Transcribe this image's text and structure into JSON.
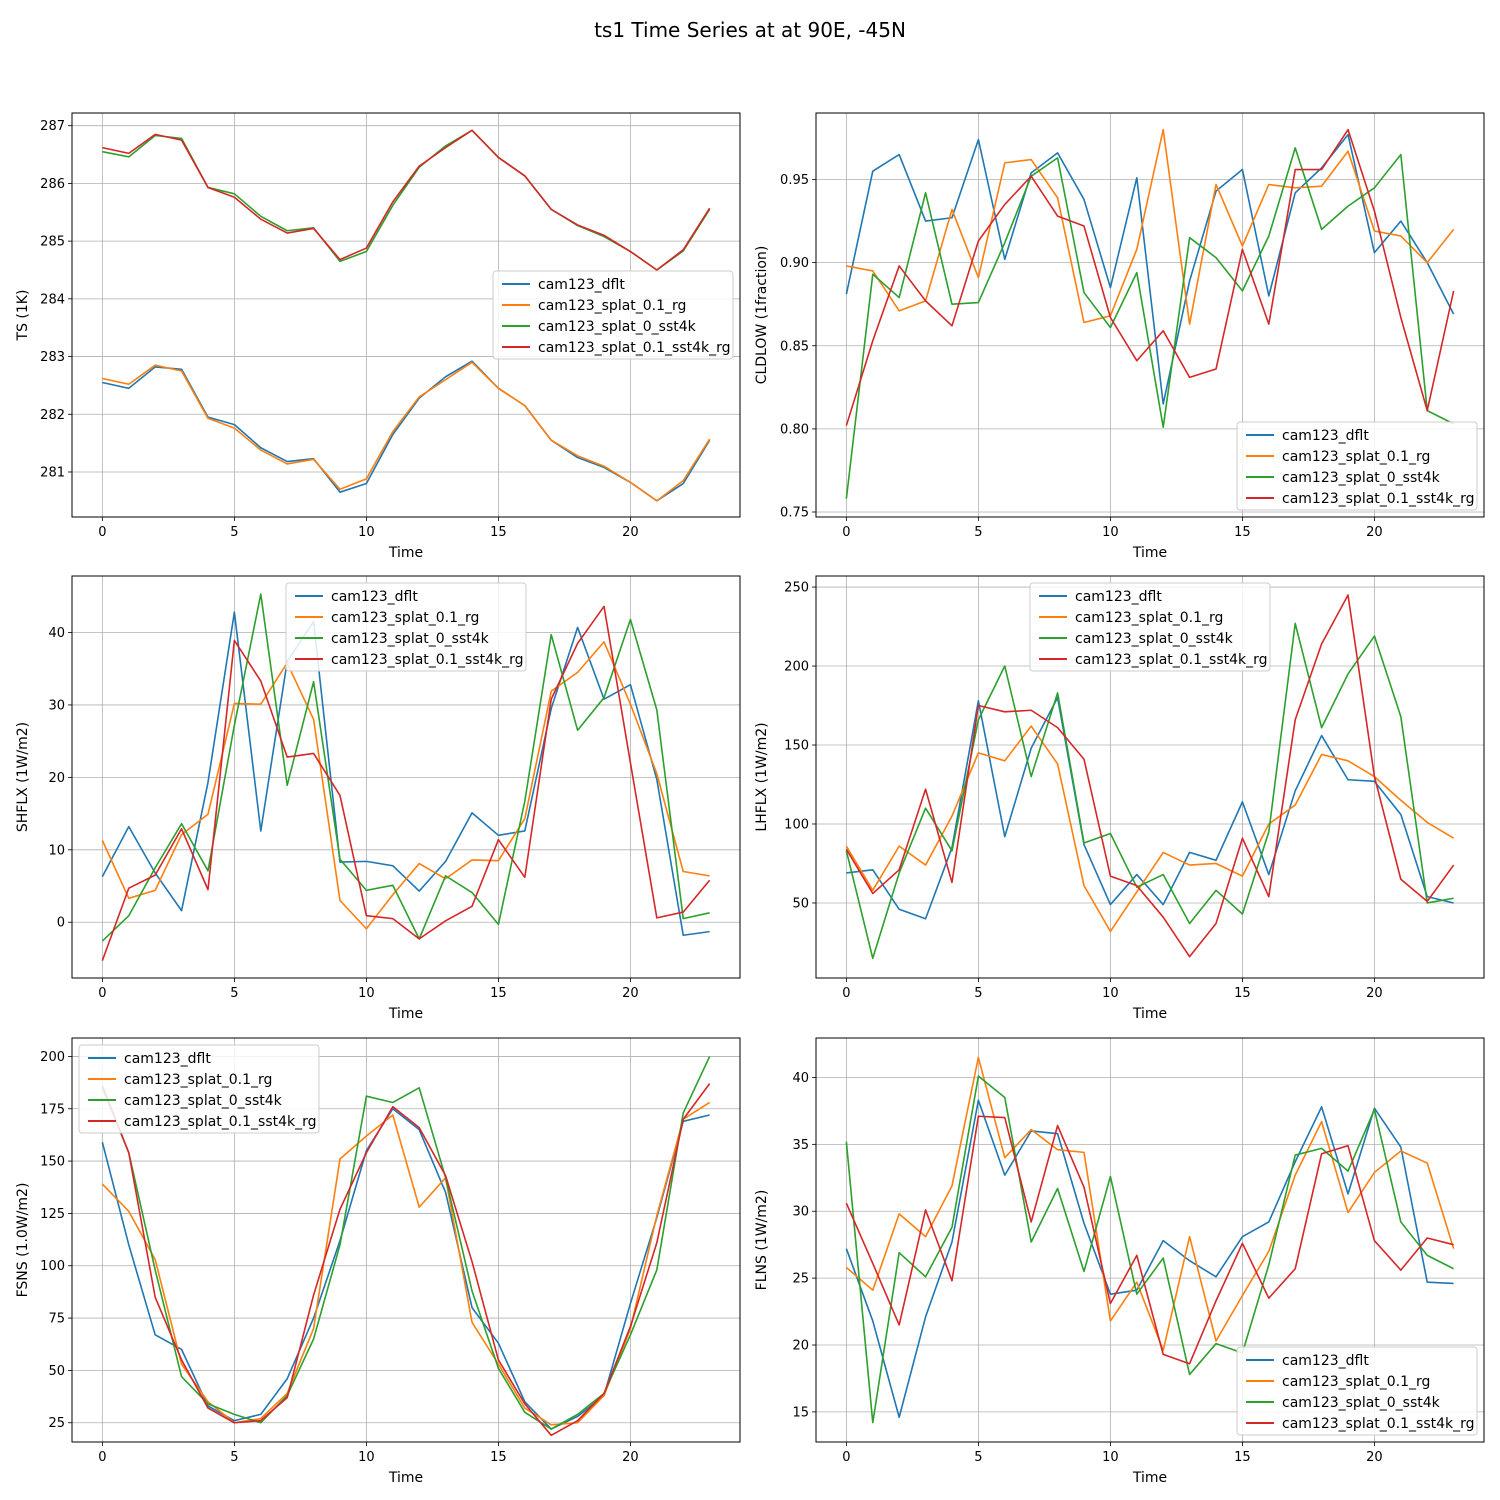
{
  "figure": {
    "title": "ts1 Time Series at at 90E, -45N"
  },
  "series_colors": {
    "cam123_dflt": "#1f77b4",
    "cam123_splat_0.1_rg": "#ff7f0e",
    "cam123_splat_0_sst4k": "#2ca02c",
    "cam123_splat_0.1_sst4k_rg": "#d62728"
  },
  "chart_data": [
    {
      "type": "line",
      "xlabel": "Time",
      "ylabel": "TS (1K)",
      "xlim": [
        -1.15,
        24.15
      ],
      "ylim": [
        280.22,
        287.22
      ],
      "xticks": [
        0,
        5,
        10,
        15,
        20
      ],
      "yticks": [
        281,
        282,
        283,
        284,
        285,
        286,
        287
      ],
      "ytick_decimals": 0,
      "grid": true,
      "legend": "center-right",
      "x": [
        0,
        1,
        2,
        3,
        4,
        5,
        6,
        7,
        8,
        9,
        10,
        11,
        12,
        13,
        14,
        15,
        16,
        17,
        18,
        19,
        20,
        21,
        22,
        23
      ],
      "series": [
        {
          "name": "cam123_dflt",
          "color": "#1f77b4",
          "values": [
            282.55,
            282.45,
            282.82,
            282.78,
            281.95,
            281.82,
            281.42,
            281.18,
            281.23,
            280.65,
            280.8,
            281.65,
            282.28,
            282.65,
            282.92,
            282.45,
            282.15,
            281.55,
            281.25,
            281.08,
            280.82,
            280.5,
            280.8,
            281.55
          ]
        },
        {
          "name": "cam123_splat_0.1_rg",
          "color": "#ff7f0e",
          "values": [
            282.62,
            282.52,
            282.85,
            282.75,
            281.93,
            281.76,
            281.38,
            281.14,
            281.22,
            280.7,
            280.88,
            281.7,
            282.3,
            282.6,
            282.9,
            282.45,
            282.15,
            281.55,
            281.28,
            281.1,
            280.82,
            280.5,
            280.85,
            281.57
          ]
        },
        {
          "name": "cam123_splat_0_sst4k",
          "color": "#2ca02c",
          "values": [
            286.55,
            286.46,
            286.83,
            286.78,
            285.93,
            285.82,
            285.43,
            285.18,
            285.23,
            284.65,
            284.82,
            285.62,
            286.28,
            286.65,
            286.92,
            286.45,
            286.13,
            285.55,
            285.27,
            285.08,
            284.82,
            284.5,
            284.83,
            285.55
          ]
        },
        {
          "name": "cam123_splat_0.1_sst4k_rg",
          "color": "#d62728",
          "values": [
            286.62,
            286.52,
            286.85,
            286.75,
            285.93,
            285.76,
            285.38,
            285.14,
            285.22,
            284.68,
            284.88,
            285.68,
            286.3,
            286.62,
            286.92,
            286.45,
            286.13,
            285.55,
            285.28,
            285.1,
            284.82,
            284.5,
            284.85,
            285.57
          ]
        }
      ]
    },
    {
      "type": "line",
      "xlabel": "Time",
      "ylabel": "CLDLOW (1fraction)",
      "xlim": [
        -1.15,
        24.15
      ],
      "ylim": [
        0.747,
        0.99
      ],
      "xticks": [
        0,
        5,
        10,
        15,
        20
      ],
      "yticks": [
        0.75,
        0.8,
        0.85,
        0.9,
        0.95
      ],
      "ytick_decimals": 2,
      "grid": true,
      "legend": "lower-right",
      "x": [
        0,
        1,
        2,
        3,
        4,
        5,
        6,
        7,
        8,
        9,
        10,
        11,
        12,
        13,
        14,
        15,
        16,
        17,
        18,
        19,
        20,
        21,
        22,
        23
      ],
      "series": [
        {
          "name": "cam123_dflt",
          "color": "#1f77b4",
          "values": [
            0.881,
            0.955,
            0.965,
            0.925,
            0.927,
            0.974,
            0.902,
            0.954,
            0.966,
            0.938,
            0.885,
            0.951,
            0.815,
            0.889,
            0.943,
            0.956,
            0.88,
            0.942,
            0.957,
            0.977,
            0.906,
            0.925,
            0.9,
            0.869
          ]
        },
        {
          "name": "cam123_splat_0.1_rg",
          "color": "#ff7f0e",
          "values": [
            0.898,
            0.895,
            0.871,
            0.877,
            0.932,
            0.891,
            0.96,
            0.962,
            0.939,
            0.864,
            0.868,
            0.908,
            0.98,
            0.863,
            0.947,
            0.91,
            0.947,
            0.945,
            0.946,
            0.967,
            0.919,
            0.916,
            0.9,
            0.92
          ]
        },
        {
          "name": "cam123_splat_0_sst4k",
          "color": "#2ca02c",
          "values": [
            0.758,
            0.893,
            0.879,
            0.942,
            0.875,
            0.876,
            0.912,
            0.952,
            0.963,
            0.882,
            0.861,
            0.894,
            0.801,
            0.915,
            0.903,
            0.883,
            0.916,
            0.969,
            0.92,
            0.934,
            0.945,
            0.965,
            0.811,
            0.803
          ]
        },
        {
          "name": "cam123_splat_0.1_sst4k_rg",
          "color": "#d62728",
          "values": [
            0.802,
            0.853,
            0.898,
            0.877,
            0.862,
            0.913,
            0.935,
            0.952,
            0.928,
            0.922,
            0.867,
            0.841,
            0.859,
            0.831,
            0.836,
            0.908,
            0.863,
            0.956,
            0.956,
            0.98,
            0.931,
            0.867,
            0.811,
            0.883
          ]
        }
      ]
    },
    {
      "type": "line",
      "xlabel": "Time",
      "ylabel": "SHFLX (1W/m2)",
      "xlim": [
        -1.15,
        24.15
      ],
      "ylim": [
        -7.7,
        47.8
      ],
      "xticks": [
        0,
        5,
        10,
        15,
        20
      ],
      "yticks": [
        0,
        10,
        20,
        30,
        40
      ],
      "ytick_decimals": 0,
      "grid": true,
      "legend": "upper-center",
      "x": [
        0,
        1,
        2,
        3,
        4,
        5,
        6,
        7,
        8,
        9,
        10,
        11,
        12,
        13,
        14,
        15,
        16,
        17,
        18,
        19,
        20,
        21,
        22,
        23
      ],
      "series": [
        {
          "name": "cam123_dflt",
          "color": "#1f77b4",
          "values": [
            6.3,
            13.2,
            6.8,
            1.6,
            19.3,
            42.8,
            12.6,
            36.0,
            41.5,
            8.3,
            8.4,
            7.8,
            4.3,
            8.4,
            15.1,
            12.0,
            12.6,
            29.5,
            40.7,
            30.8,
            32.8,
            19.7,
            -1.8,
            -1.3
          ]
        },
        {
          "name": "cam123_splat_0.1_rg",
          "color": "#ff7f0e",
          "values": [
            11.3,
            3.3,
            4.4,
            12.1,
            14.9,
            30.2,
            30.1,
            35.8,
            28.0,
            3.0,
            -0.9,
            3.8,
            8.1,
            6.0,
            8.6,
            8.5,
            14.3,
            31.9,
            34.5,
            38.7,
            30.1,
            20.5,
            7.0,
            6.4
          ]
        },
        {
          "name": "cam123_splat_0_sst4k",
          "color": "#2ca02c",
          "values": [
            -2.6,
            0.9,
            7.5,
            13.6,
            7.1,
            27.2,
            45.3,
            18.9,
            33.2,
            8.7,
            4.4,
            5.1,
            -2.3,
            6.4,
            4.1,
            -0.3,
            16.7,
            39.7,
            26.5,
            31.0,
            41.8,
            29.3,
            0.5,
            1.3
          ]
        },
        {
          "name": "cam123_splat_0.1_sst4k_rg",
          "color": "#d62728",
          "values": [
            -5.3,
            4.7,
            6.5,
            12.9,
            4.5,
            38.9,
            33.3,
            22.8,
            23.3,
            17.5,
            0.9,
            0.5,
            -2.3,
            0.2,
            2.2,
            11.4,
            6.2,
            30.8,
            38.5,
            43.6,
            22.0,
            0.6,
            1.4,
            5.8
          ]
        }
      ]
    },
    {
      "type": "line",
      "xlabel": "Time",
      "ylabel": "LHFLX (1W/m2)",
      "xlim": [
        -1.15,
        24.15
      ],
      "ylim": [
        2.5,
        257
      ],
      "xticks": [
        0,
        5,
        10,
        15,
        20
      ],
      "yticks": [
        50,
        100,
        150,
        200,
        250
      ],
      "ytick_decimals": 0,
      "grid": true,
      "legend": "upper-center",
      "x": [
        0,
        1,
        2,
        3,
        4,
        5,
        6,
        7,
        8,
        9,
        10,
        11,
        12,
        13,
        14,
        15,
        16,
        17,
        18,
        19,
        20,
        21,
        22,
        23
      ],
      "series": [
        {
          "name": "cam123_dflt",
          "color": "#1f77b4",
          "values": [
            69,
            71,
            46,
            40,
            85,
            178,
            92,
            148,
            180,
            87,
            49,
            68,
            49,
            82,
            77,
            114,
            68,
            121,
            156,
            128,
            127,
            106,
            54,
            50
          ]
        },
        {
          "name": "cam123_splat_0.1_rg",
          "color": "#ff7f0e",
          "values": [
            86,
            58,
            86,
            74,
            105,
            145,
            140,
            162,
            138,
            61,
            32,
            57,
            82,
            74,
            75,
            67,
            100,
            112,
            144,
            140,
            130,
            115,
            101,
            91
          ]
        },
        {
          "name": "cam123_splat_0_sst4k",
          "color": "#2ca02c",
          "values": [
            83,
            15,
            69,
            110,
            83,
            166,
            200,
            130,
            183,
            88,
            94,
            60,
            68,
            37,
            58,
            43,
            95,
            227,
            161,
            195,
            219,
            168,
            50,
            53
          ]
        },
        {
          "name": "cam123_splat_0.1_sst4k_rg",
          "color": "#d62728",
          "values": [
            84,
            56,
            71,
            122,
            63,
            175,
            171,
            172,
            161,
            141,
            67,
            61,
            41,
            16,
            37,
            91,
            54,
            166,
            214,
            245,
            130,
            65,
            51,
            74
          ]
        }
      ]
    },
    {
      "type": "line",
      "xlabel": "Time",
      "ylabel": "FSNS (1.0W/m2)",
      "xlim": [
        -1.15,
        24.15
      ],
      "ylim": [
        15.8,
        208.8
      ],
      "xticks": [
        0,
        5,
        10,
        15,
        20
      ],
      "yticks": [
        25,
        50,
        75,
        100,
        125,
        150,
        175,
        200
      ],
      "ytick_decimals": 0,
      "grid": true,
      "legend": "upper-left",
      "x": [
        0,
        1,
        2,
        3,
        4,
        5,
        6,
        7,
        8,
        9,
        10,
        11,
        12,
        13,
        14,
        15,
        16,
        17,
        18,
        19,
        20,
        21,
        22,
        23
      ],
      "series": [
        {
          "name": "cam123_dflt",
          "color": "#1f77b4",
          "values": [
            159,
            110,
            67,
            60,
            33,
            26,
            29,
            46,
            75,
            112,
            155,
            175,
            165,
            135,
            80,
            63,
            35,
            22,
            28,
            38,
            82,
            123,
            169,
            172
          ]
        },
        {
          "name": "cam123_splat_0.1_rg",
          "color": "#ff7f0e",
          "values": [
            139,
            126,
            103,
            53,
            35,
            25,
            27,
            39,
            70,
            151,
            162,
            172,
            128,
            142,
            73,
            53,
            32,
            24,
            25,
            38,
            70,
            124,
            170,
            178
          ]
        },
        {
          "name": "cam123_splat_0_sst4k",
          "color": "#2ca02c",
          "values": [
            185,
            154,
            98,
            47,
            34,
            29,
            25,
            38,
            65,
            110,
            181,
            178,
            185,
            142,
            88,
            51,
            30,
            22,
            29,
            39,
            67,
            98,
            173,
            200
          ]
        },
        {
          "name": "cam123_splat_0.1_sst4k_rg",
          "color": "#d62728",
          "values": [
            186,
            154,
            85,
            55,
            32,
            25,
            26,
            37,
            86,
            127,
            154,
            176,
            166,
            143,
            102,
            55,
            34,
            19,
            26,
            39,
            71,
            111,
            170,
            187
          ]
        }
      ]
    },
    {
      "type": "line",
      "xlabel": "Time",
      "ylabel": "FLNS (1W/m2)",
      "xlim": [
        -1.15,
        24.15
      ],
      "ylim": [
        12.75,
        42.95
      ],
      "xticks": [
        0,
        5,
        10,
        15,
        20
      ],
      "yticks": [
        15,
        20,
        25,
        30,
        35,
        40
      ],
      "ytick_decimals": 0,
      "grid": true,
      "legend": "lower-right",
      "x": [
        0,
        1,
        2,
        3,
        4,
        5,
        6,
        7,
        8,
        9,
        10,
        11,
        12,
        13,
        14,
        15,
        16,
        17,
        18,
        19,
        20,
        21,
        22,
        23
      ],
      "series": [
        {
          "name": "cam123_dflt",
          "color": "#1f77b4",
          "values": [
            27.2,
            21.8,
            14.6,
            22.1,
            27.7,
            38.3,
            32.7,
            36.0,
            35.8,
            29.1,
            23.8,
            24.1,
            27.8,
            26.3,
            25.1,
            28.1,
            29.2,
            33.7,
            37.8,
            31.3,
            37.7,
            34.8,
            24.7,
            24.6
          ]
        },
        {
          "name": "cam123_splat_0.1_rg",
          "color": "#ff7f0e",
          "values": [
            25.8,
            24.1,
            29.8,
            28.1,
            31.9,
            41.5,
            34.0,
            36.1,
            34.6,
            34.4,
            21.8,
            24.7,
            19.6,
            28.1,
            20.3,
            23.7,
            27.0,
            32.7,
            36.7,
            29.9,
            32.9,
            34.5,
            33.6,
            27.2
          ]
        },
        {
          "name": "cam123_splat_0_sst4k",
          "color": "#2ca02c",
          "values": [
            35.2,
            14.2,
            26.9,
            25.1,
            28.8,
            40.1,
            38.5,
            27.7,
            31.7,
            25.5,
            32.6,
            23.8,
            26.5,
            17.8,
            20.1,
            19.4,
            26.0,
            34.2,
            34.7,
            33.0,
            37.6,
            29.2,
            26.7,
            25.7
          ]
        },
        {
          "name": "cam123_splat_0.1_sst4k_rg",
          "color": "#d62728",
          "values": [
            30.6,
            26.1,
            21.5,
            30.1,
            24.8,
            37.1,
            37.0,
            29.2,
            36.4,
            31.8,
            23.1,
            26.7,
            19.3,
            18.6,
            23.3,
            27.6,
            23.5,
            25.7,
            34.3,
            34.9,
            27.8,
            25.6,
            28.0,
            27.5
          ]
        }
      ]
    }
  ]
}
